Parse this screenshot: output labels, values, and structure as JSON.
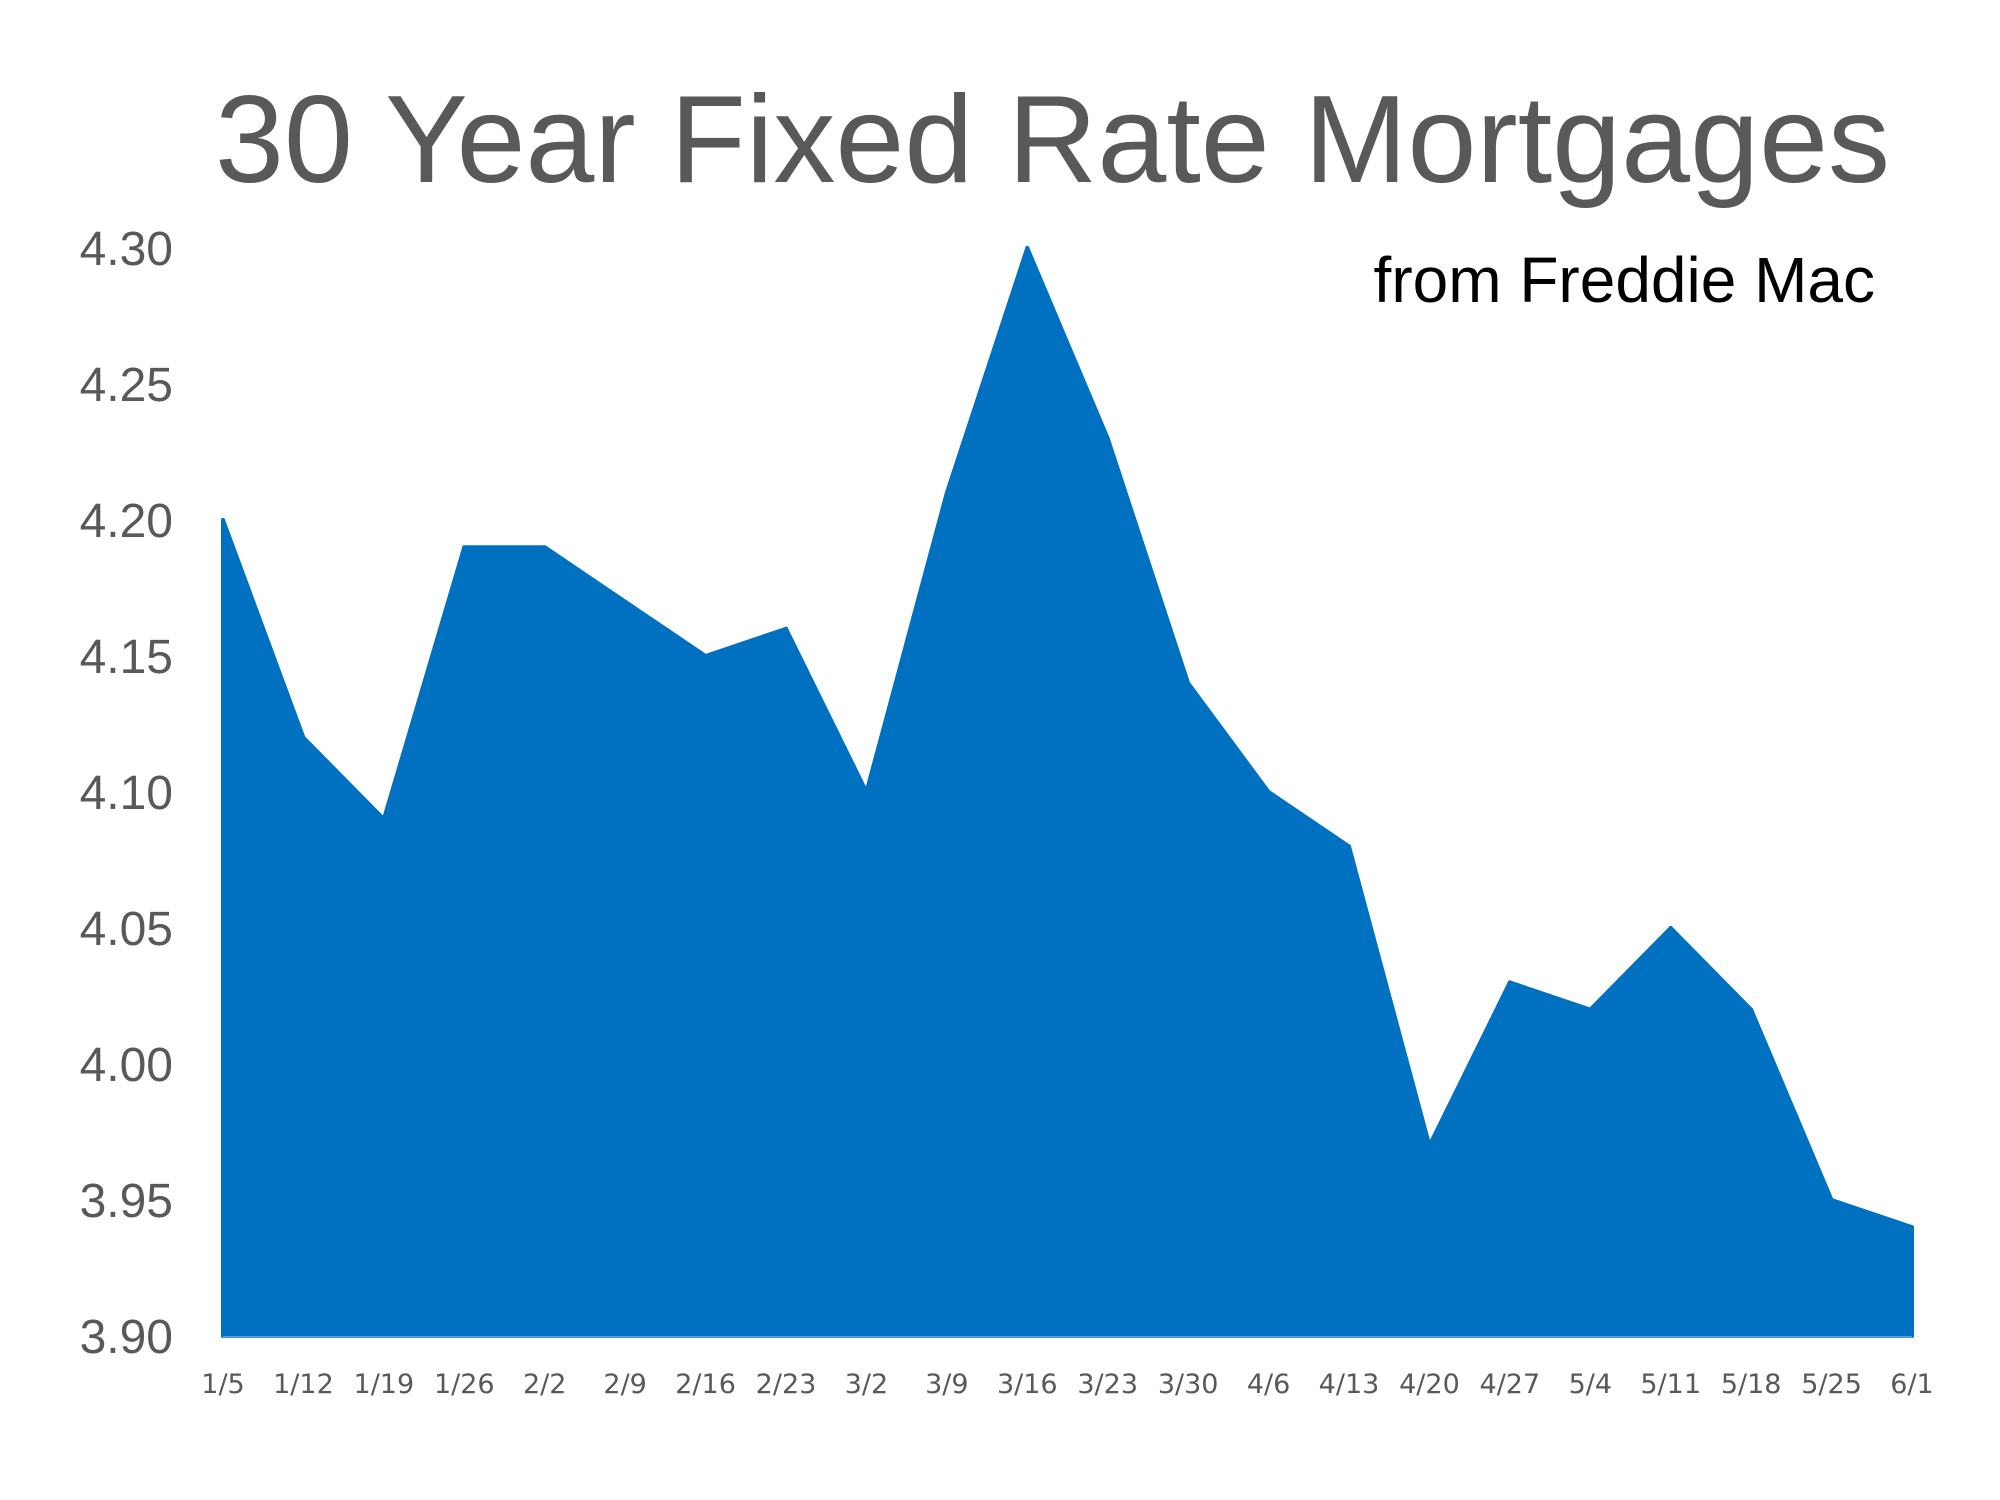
{
  "chart_data": {
    "type": "area",
    "title": "30 Year Fixed Rate Mortgages",
    "subtitle": "from Freddie Mac",
    "xlabel": "",
    "ylabel": "",
    "categories": [
      "1/5",
      "1/12",
      "1/19",
      "1/26",
      "2/2",
      "2/9",
      "2/16",
      "2/23",
      "3/2",
      "3/9",
      "3/16",
      "3/23",
      "3/30",
      "4/6",
      "4/13",
      "4/20",
      "4/27",
      "5/4",
      "5/11",
      "5/18",
      "5/25",
      "6/1"
    ],
    "values": [
      4.2,
      4.12,
      4.09,
      4.19,
      4.19,
      4.17,
      4.15,
      4.16,
      4.1,
      4.21,
      4.3,
      4.23,
      4.14,
      4.1,
      4.08,
      3.97,
      4.03,
      4.02,
      4.05,
      4.02,
      3.95,
      3.94
    ],
    "yticks": [
      "3.90",
      "3.95",
      "4.00",
      "4.05",
      "4.10",
      "4.15",
      "4.20",
      "4.25",
      "4.30"
    ],
    "ylim": [
      3.9,
      4.3
    ],
    "grid": false,
    "legend": "none",
    "color": "#0070C0"
  }
}
